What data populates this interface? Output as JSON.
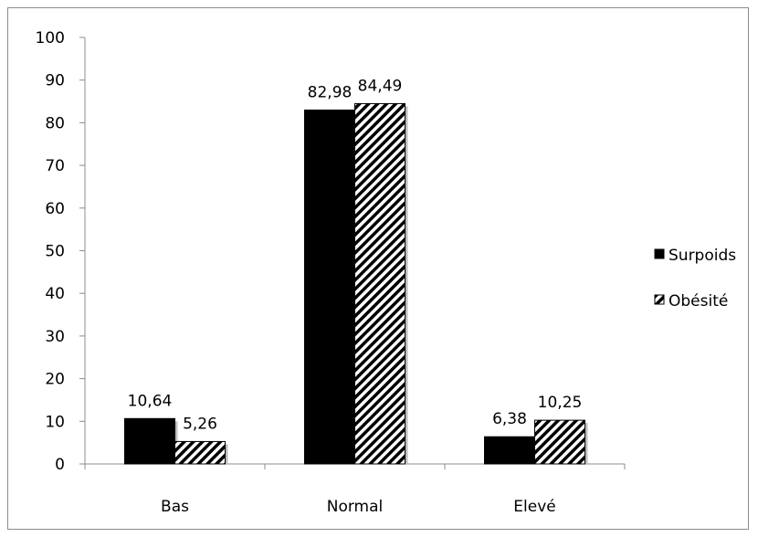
{
  "chart_data": {
    "type": "bar",
    "title": "",
    "xlabel": "",
    "ylabel": "",
    "categories": [
      "Bas",
      "Normal",
      "Elevé"
    ],
    "series": [
      {
        "name": "Surpoids",
        "values": [
          10.64,
          82.98,
          6.38
        ],
        "labels": [
          "10,64",
          "82,98",
          "6,38"
        ],
        "fill": "#000000"
      },
      {
        "name": "Obésité",
        "values": [
          5.26,
          84.49,
          10.25
        ],
        "labels": [
          "5,26",
          "84,49",
          "10,25"
        ],
        "fill": "hatched"
      }
    ],
    "ylim": [
      0,
      100
    ],
    "yticks": [
      0,
      10,
      20,
      30,
      40,
      50,
      60,
      70,
      80,
      90,
      100
    ],
    "grid": false,
    "legend": "right"
  }
}
